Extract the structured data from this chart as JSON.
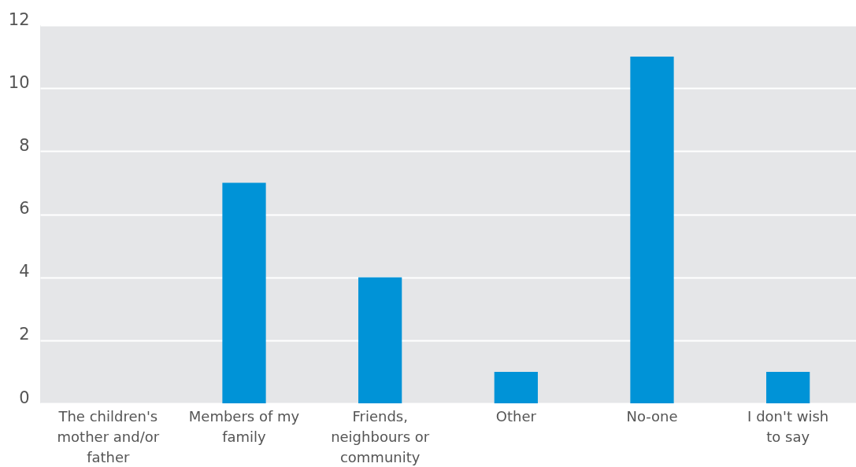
{
  "chart_data": {
    "type": "bar",
    "categories": [
      "The children's mother and/or father",
      "Members of my family",
      "Friends, neighbours or community",
      "Other",
      "No-one",
      "I don't wish to say"
    ],
    "values": [
      0,
      7,
      4,
      1,
      11,
      1
    ],
    "color": "#0093d7",
    "ylim": [
      0,
      12
    ],
    "yticks": [
      0,
      2,
      4,
      6,
      8,
      10,
      12
    ],
    "grid": "y"
  }
}
